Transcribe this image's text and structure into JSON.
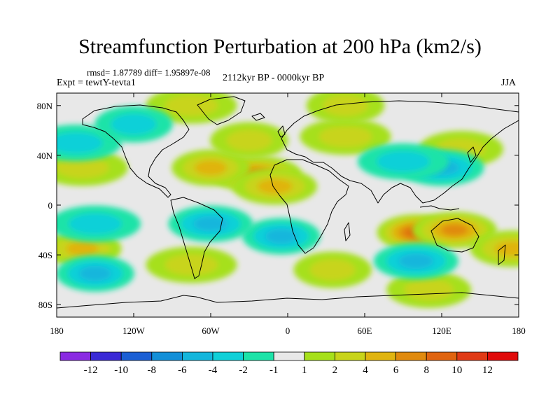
{
  "chart_data": {
    "type": "heatmap",
    "title": "Streamfunction Perturbation at 200 hPa (km2/s)",
    "stats": "rmsd= 1.87789 diff= 1.95897e-08",
    "left_label": "Expt = tewtY-tevta1",
    "center_label": "2112kyr BP - 0000kyr BP",
    "right_label": "JJA",
    "xlim": [
      -180,
      180
    ],
    "ylim": [
      -90,
      90
    ],
    "x_ticks": [
      {
        "value": -180,
        "label": "180"
      },
      {
        "value": -120,
        "label": "120W"
      },
      {
        "value": -60,
        "label": "60W"
      },
      {
        "value": 0,
        "label": "0"
      },
      {
        "value": 60,
        "label": "60E"
      },
      {
        "value": 120,
        "label": "120E"
      },
      {
        "value": 180,
        "label": "180"
      }
    ],
    "y_ticks": [
      {
        "value": 80,
        "label": "80N"
      },
      {
        "value": 40,
        "label": "40N"
      },
      {
        "value": 0,
        "label": "0"
      },
      {
        "value": -40,
        "label": "40S"
      },
      {
        "value": -80,
        "label": "80S"
      }
    ],
    "colorbar": {
      "levels": [
        "-12",
        "-10",
        "-8",
        "-6",
        "-4",
        "-2",
        "-1",
        "1",
        "2",
        "4",
        "6",
        "8",
        "10",
        "12"
      ],
      "colors": [
        "#8a2be2",
        "#3a2ad6",
        "#1b5fd4",
        "#138fd8",
        "#14b6dc",
        "#10d0d8",
        "#1ce3a8",
        "#e8e8e8",
        "#a6e01a",
        "#c8d41a",
        "#e0b410",
        "#e08a0e",
        "#e06410",
        "#e03a16",
        "#e00b0b"
      ]
    },
    "anomaly_centers": [
      {
        "lon": 100,
        "lat": -22,
        "value": 8
      },
      {
        "lon": 130,
        "lat": -20,
        "value": 6
      },
      {
        "lon": -25,
        "lat": 25,
        "value": 6
      },
      {
        "lon": -60,
        "lat": 30,
        "value": 4
      },
      {
        "lon": -10,
        "lat": 15,
        "value": 4
      },
      {
        "lon": -160,
        "lat": 30,
        "value": 2
      },
      {
        "lon": -160,
        "lat": -35,
        "value": 4
      },
      {
        "lon": 175,
        "lat": -35,
        "value": 4
      },
      {
        "lon": -75,
        "lat": -48,
        "value": 2
      },
      {
        "lon": 35,
        "lat": -52,
        "value": 2
      },
      {
        "lon": 110,
        "lat": -68,
        "value": 2
      },
      {
        "lon": 45,
        "lat": 55,
        "value": 2
      },
      {
        "lon": -30,
        "lat": 52,
        "value": 2
      },
      {
        "lon": 135,
        "lat": 45,
        "value": 2
      },
      {
        "lon": -75,
        "lat": 80,
        "value": 2
      },
      {
        "lon": 45,
        "lat": 80,
        "value": 2
      },
      {
        "lon": 120,
        "lat": 30,
        "value": -4
      },
      {
        "lon": 90,
        "lat": 35,
        "value": -2
      },
      {
        "lon": -5,
        "lat": -25,
        "value": -4
      },
      {
        "lon": -60,
        "lat": -15,
        "value": -4
      },
      {
        "lon": -150,
        "lat": -15,
        "value": -2
      },
      {
        "lon": -150,
        "lat": -55,
        "value": -4
      },
      {
        "lon": 100,
        "lat": -45,
        "value": -4
      },
      {
        "lon": -165,
        "lat": 50,
        "value": -2
      },
      {
        "lon": -120,
        "lat": 65,
        "value": -2
      }
    ]
  }
}
